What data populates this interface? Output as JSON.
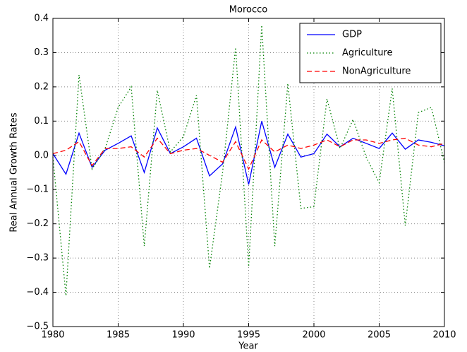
{
  "chart_data": {
    "type": "line",
    "title": "Morocco",
    "x_label": "Year",
    "y_label": "Real Annual Growth Rates",
    "x": [
      1980,
      1981,
      1982,
      1983,
      1984,
      1985,
      1986,
      1987,
      1988,
      1989,
      1990,
      1991,
      1992,
      1993,
      1994,
      1995,
      1996,
      1997,
      1998,
      1999,
      2000,
      2001,
      2002,
      2003,
      2004,
      2005,
      2006,
      2007,
      2008,
      2009,
      2010
    ],
    "series": [
      {
        "name": "GDP",
        "color": "#0000ff",
        "style": "solid",
        "values": [
          0.005,
          -0.055,
          0.065,
          -0.035,
          0.015,
          0.035,
          0.057,
          -0.05,
          0.08,
          0.005,
          0.025,
          0.05,
          -0.06,
          -0.025,
          0.083,
          -0.085,
          0.1,
          -0.035,
          0.062,
          -0.005,
          0.005,
          0.062,
          0.025,
          0.05,
          0.035,
          0.02,
          0.065,
          0.018,
          0.045,
          0.038,
          0.028
        ]
      },
      {
        "name": "Agriculture",
        "color": "#008000",
        "style": "dotted",
        "values": [
          -0.005,
          -0.41,
          0.235,
          -0.04,
          0.02,
          0.14,
          0.2,
          -0.265,
          0.19,
          0.01,
          0.055,
          0.175,
          -0.33,
          -0.05,
          0.315,
          -0.325,
          0.38,
          -0.265,
          0.21,
          -0.155,
          -0.15,
          0.165,
          0.02,
          0.105,
          -0.005,
          -0.08,
          0.195,
          -0.205,
          0.125,
          0.14,
          -0.02
        ]
      },
      {
        "name": "NonAgriculture",
        "color": "#ff0000",
        "style": "dashed",
        "values": [
          0.005,
          0.015,
          0.04,
          -0.03,
          0.02,
          0.02,
          0.025,
          -0.005,
          0.05,
          0.005,
          0.015,
          0.02,
          0.0,
          -0.02,
          0.04,
          -0.04,
          0.045,
          0.01,
          0.03,
          0.02,
          0.03,
          0.045,
          0.025,
          0.045,
          0.045,
          0.035,
          0.045,
          0.05,
          0.03,
          0.025,
          0.035
        ]
      }
    ],
    "xlim": [
      1980,
      2010
    ],
    "xticks": [
      1980,
      1985,
      1990,
      1995,
      2000,
      2005,
      2010
    ],
    "ylim": [
      -0.5,
      0.4
    ],
    "yticks": [
      {
        "value": -0.5,
        "label": "−0.5"
      },
      {
        "value": -0.4,
        "label": "−0.4"
      },
      {
        "value": -0.3,
        "label": "−0.3"
      },
      {
        "value": -0.2,
        "label": "−0.2"
      },
      {
        "value": -0.1,
        "label": "−0.1"
      },
      {
        "value": 0,
        "label": "0.0"
      },
      0.1,
      0.2,
      0.3,
      0.4
    ],
    "grid": true,
    "legend": "upper right"
  }
}
